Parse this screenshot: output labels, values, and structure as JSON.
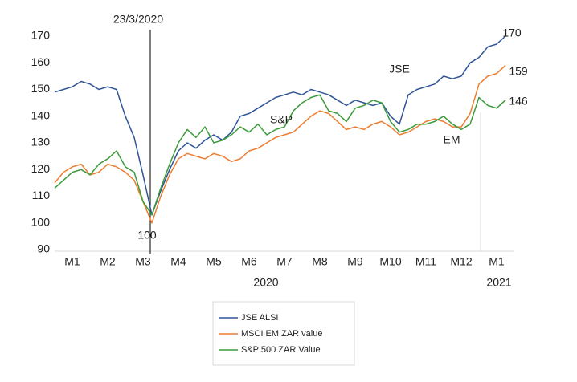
{
  "chart_data": {
    "type": "line",
    "annotations": [
      "23/3/2020",
      "100",
      "170",
      "159",
      "146",
      "JSE",
      "S&P",
      "EM"
    ],
    "year_labels": [
      "2020",
      "2021"
    ],
    "x": [
      0.5,
      0.75,
      1,
      1.25,
      1.5,
      1.75,
      2,
      2.25,
      2.5,
      2.75,
      3,
      3.25,
      3.5,
      3.75,
      4,
      4.25,
      4.5,
      4.75,
      5,
      5.25,
      5.5,
      5.75,
      6,
      6.25,
      6.5,
      6.75,
      7,
      7.25,
      7.5,
      7.75,
      8,
      8.25,
      8.5,
      8.75,
      9,
      9.25,
      9.5,
      9.75,
      10,
      10.25,
      10.5,
      10.75,
      11,
      11.25,
      11.5,
      11.75,
      12,
      12.25,
      12.5,
      12.75,
      13,
      13.25
    ],
    "xlim": [
      0.5,
      13.5
    ],
    "xticks": [
      {
        "value": 1,
        "label": "M1"
      },
      {
        "value": 2,
        "label": "M2"
      },
      {
        "value": 3,
        "label": "M3"
      },
      {
        "value": 4,
        "label": "M4"
      },
      {
        "value": 5,
        "label": "M5"
      },
      {
        "value": 6,
        "label": "M6"
      },
      {
        "value": 7,
        "label": "M7"
      },
      {
        "value": 8,
        "label": "M8"
      },
      {
        "value": 9,
        "label": "M9"
      },
      {
        "value": 10,
        "label": "M10"
      },
      {
        "value": 11,
        "label": "M11"
      },
      {
        "value": 12,
        "label": "M12"
      },
      {
        "value": 13,
        "label": "M1"
      }
    ],
    "ylim": [
      90,
      170
    ],
    "yticks": [
      90,
      100,
      110,
      120,
      130,
      140,
      150,
      160,
      170
    ],
    "grid": false,
    "legend": "bottom",
    "series": [
      {
        "name": "JSE ALSI",
        "color": "#2f5597",
        "values": [
          149,
          150,
          151,
          153,
          152,
          150,
          151,
          150,
          140,
          132,
          118,
          103,
          112,
          120,
          127,
          130,
          128,
          131,
          133,
          131,
          134,
          140,
          141,
          143,
          145,
          147,
          148,
          149,
          148,
          150,
          149,
          148,
          146,
          144,
          146,
          145,
          144,
          145,
          140,
          137,
          148,
          150,
          151,
          152,
          155,
          154,
          155,
          160,
          162,
          166,
          167,
          170
        ]
      },
      {
        "name": "MSCI EM ZAR value",
        "color": "#ed7d31",
        "values": [
          115,
          119,
          121,
          122,
          118,
          119,
          122,
          121,
          119,
          116,
          108,
          100,
          110,
          118,
          124,
          126,
          125,
          124,
          126,
          125,
          123,
          124,
          127,
          128,
          130,
          132,
          133,
          134,
          137,
          140,
          142,
          141,
          138,
          135,
          136,
          135,
          137,
          138,
          136,
          133,
          134,
          136,
          138,
          139,
          138,
          136,
          136,
          141,
          152,
          155,
          156,
          159
        ]
      },
      {
        "name": "S&P 500 ZAR Value",
        "color": "#3a9b3a",
        "values": [
          113,
          116,
          119,
          120,
          118,
          122,
          124,
          127,
          121,
          119,
          108,
          103,
          113,
          122,
          130,
          135,
          132,
          136,
          130,
          131,
          133,
          136,
          134,
          137,
          133,
          135,
          136,
          142,
          145,
          147,
          148,
          142,
          141,
          138,
          143,
          144,
          146,
          145,
          138,
          134,
          135,
          137,
          137,
          138,
          140,
          137,
          135,
          137,
          147,
          144,
          143,
          146
        ]
      }
    ]
  }
}
